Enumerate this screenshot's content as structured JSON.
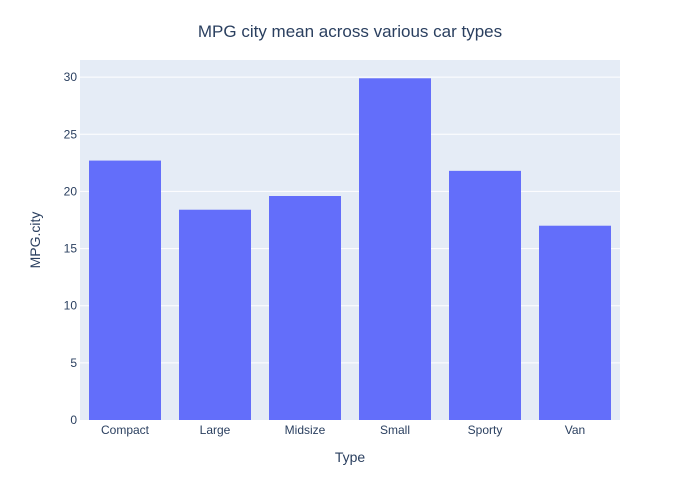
{
  "chart_data": {
    "type": "bar",
    "title": "MPG city mean across various car types",
    "xlabel": "Type",
    "ylabel": "MPG.city",
    "categories": [
      "Compact",
      "Large",
      "Midsize",
      "Small",
      "Sporty",
      "Van"
    ],
    "values": [
      22.7,
      18.4,
      19.6,
      29.9,
      21.8,
      17.0
    ],
    "ylim": [
      0,
      31.5
    ],
    "yticks": [
      0,
      5,
      10,
      15,
      20,
      25,
      30
    ],
    "grid": true,
    "legend": "none"
  },
  "colors": {
    "bar": "#636efa",
    "plot_background": "#e5ecf6",
    "gridline": "#ffffff",
    "text": "#2a3f5f"
  }
}
